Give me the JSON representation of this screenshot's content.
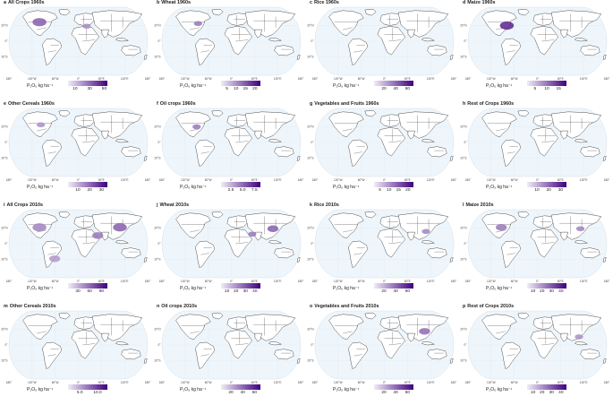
{
  "legend_unit": "P₂O₅ kg ha⁻¹",
  "colors": {
    "ocean": "#eef6fc",
    "land": "#ffffff",
    "border": "#3a3a3a",
    "ramp_low": "#f0ecf7",
    "ramp_high": "#3f007d"
  },
  "lon_labels": [
    "180°",
    "120°W",
    "60°W",
    "0°",
    "60°E",
    "120°E",
    "180°"
  ],
  "lat_labels": [
    "20°N",
    "0°",
    "20°S"
  ],
  "panels": [
    {
      "letter": "a",
      "title": "All Crops 1960s",
      "ticks": [
        "10",
        "30",
        "50"
      ],
      "tick_pos": [
        0.18,
        0.55,
        0.92
      ],
      "hotspots": [
        [
          0.22,
          0.22,
          0.05,
          0.6
        ],
        [
          0.56,
          0.28,
          0.03,
          0.4
        ]
      ]
    },
    {
      "letter": "b",
      "title": "Wheat 1960s",
      "ticks": [
        "5",
        "10",
        "15",
        "20"
      ],
      "tick_pos": [
        0.15,
        0.38,
        0.62,
        0.86
      ],
      "hotspots": [
        [
          0.26,
          0.24,
          0.03,
          0.5
        ]
      ]
    },
    {
      "letter": "c",
      "title": "Rice 1960s",
      "ticks": [
        "20",
        "40",
        "60"
      ],
      "tick_pos": [
        0.25,
        0.55,
        0.85
      ],
      "hotspots": []
    },
    {
      "letter": "d",
      "title": "Maize 1960s",
      "ticks": [
        "5",
        "10",
        "15"
      ],
      "tick_pos": [
        0.2,
        0.5,
        0.8
      ],
      "hotspots": [
        [
          0.28,
          0.27,
          0.05,
          0.85
        ]
      ]
    },
    {
      "letter": "e",
      "title": "Other Cereals 1960s",
      "ticks": [
        "10",
        "20",
        "30"
      ],
      "tick_pos": [
        0.25,
        0.55,
        0.85
      ],
      "hotspots": [
        [
          0.23,
          0.24,
          0.03,
          0.4
        ]
      ]
    },
    {
      "letter": "f",
      "title": "Oil crops 1960s",
      "ticks": [
        "2.5",
        "5.0",
        "7.5"
      ],
      "tick_pos": [
        0.25,
        0.55,
        0.85
      ],
      "hotspots": [
        [
          0.25,
          0.27,
          0.03,
          0.5
        ]
      ]
    },
    {
      "letter": "g",
      "title": "Vegetables and Fruits 1960s",
      "ticks": [
        "5",
        "10",
        "15",
        "20"
      ],
      "tick_pos": [
        0.15,
        0.38,
        0.62,
        0.86
      ],
      "hotspots": []
    },
    {
      "letter": "h",
      "title": "Rest of Crops 1960s",
      "ticks": [
        "10",
        "20",
        "30"
      ],
      "tick_pos": [
        0.25,
        0.55,
        0.85
      ],
      "hotspots": []
    },
    {
      "letter": "i",
      "title": "All Crops 2010s",
      "ticks": [
        "30",
        "60",
        "90"
      ],
      "tick_pos": [
        0.25,
        0.55,
        0.85
      ],
      "hotspots": [
        [
          0.22,
          0.26,
          0.05,
          0.45
        ],
        [
          0.8,
          0.26,
          0.05,
          0.6
        ],
        [
          0.64,
          0.38,
          0.04,
          0.5
        ],
        [
          0.33,
          0.72,
          0.04,
          0.35
        ]
      ]
    },
    {
      "letter": "j",
      "title": "Wheat 2010s",
      "ticks": [
        "10",
        "20",
        "30",
        "40"
      ],
      "tick_pos": [
        0.15,
        0.38,
        0.62,
        0.86
      ],
      "hotspots": [
        [
          0.8,
          0.28,
          0.04,
          0.6
        ],
        [
          0.65,
          0.36,
          0.03,
          0.5
        ]
      ]
    },
    {
      "letter": "k",
      "title": "Rice 2010s",
      "ticks": [
        "20",
        "40",
        "60"
      ],
      "tick_pos": [
        0.25,
        0.55,
        0.85
      ],
      "hotspots": [
        [
          0.8,
          0.32,
          0.03,
          0.45
        ]
      ]
    },
    {
      "letter": "l",
      "title": "Maize 2010s",
      "ticks": [
        "10",
        "20",
        "30",
        "40"
      ],
      "tick_pos": [
        0.15,
        0.38,
        0.62,
        0.86
      ],
      "hotspots": [
        [
          0.24,
          0.26,
          0.04,
          0.5
        ],
        [
          0.81,
          0.28,
          0.03,
          0.45
        ]
      ]
    },
    {
      "letter": "m",
      "title": "Other Cereals 2010s",
      "ticks": [
        "5.0",
        "10.0"
      ],
      "tick_pos": [
        0.3,
        0.75
      ],
      "hotspots": []
    },
    {
      "letter": "n",
      "title": "Oil crops 2010s",
      "ticks": [
        "20",
        "40",
        "60"
      ],
      "tick_pos": [
        0.25,
        0.55,
        0.85
      ],
      "hotspots": []
    },
    {
      "letter": "o",
      "title": "Vegetables and Fruits 2010s",
      "ticks": [
        "20",
        "40",
        "60"
      ],
      "tick_pos": [
        0.25,
        0.55,
        0.85
      ],
      "hotspots": [
        [
          0.79,
          0.3,
          0.04,
          0.55
        ]
      ]
    },
    {
      "letter": "p",
      "title": "Rest of Crops 2010s",
      "ticks": [
        "10",
        "20",
        "30",
        "40"
      ],
      "tick_pos": [
        0.15,
        0.38,
        0.62,
        0.86
      ],
      "hotspots": [
        [
          0.8,
          0.38,
          0.03,
          0.4
        ]
      ]
    }
  ]
}
